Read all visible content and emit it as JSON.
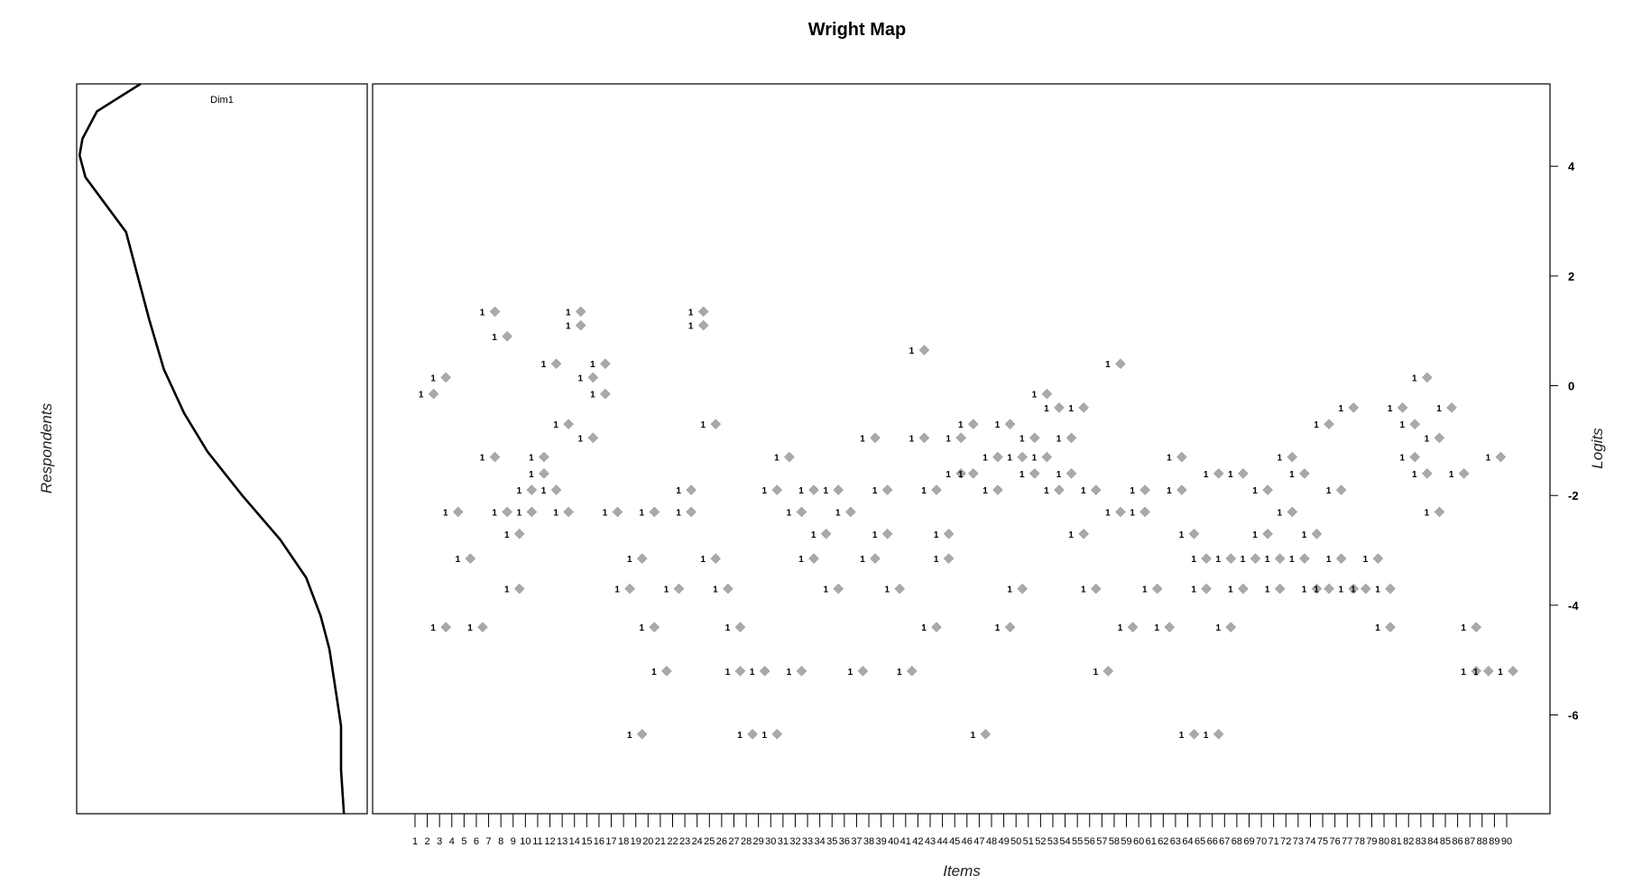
{
  "chart_data": {
    "type": "scatter",
    "title": "Wright Map",
    "xlabel": "Items",
    "ylabel": "Logits",
    "person_panel_label": "Respondents",
    "dimension_label": "Dim1",
    "ylim": [
      -7.8,
      5.5
    ],
    "y_ticks": [
      4,
      2,
      0,
      -2,
      -4,
      -6
    ],
    "item_count": 90,
    "threshold_marker_label": "1",
    "marker_color": "#a9a9a9",
    "person_density": [
      {
        "logit": 5.5,
        "density": 0.22
      },
      {
        "logit": 5.0,
        "density": 0.07
      },
      {
        "logit": 4.5,
        "density": 0.02
      },
      {
        "logit": 4.2,
        "density": 0.01
      },
      {
        "logit": 3.8,
        "density": 0.03
      },
      {
        "logit": 3.3,
        "density": 0.1
      },
      {
        "logit": 2.8,
        "density": 0.17
      },
      {
        "logit": 2.0,
        "density": 0.21
      },
      {
        "logit": 1.2,
        "density": 0.25
      },
      {
        "logit": 0.3,
        "density": 0.3
      },
      {
        "logit": -0.5,
        "density": 0.37
      },
      {
        "logit": -1.2,
        "density": 0.45
      },
      {
        "logit": -2.0,
        "density": 0.57
      },
      {
        "logit": -2.8,
        "density": 0.7
      },
      {
        "logit": -3.5,
        "density": 0.79
      },
      {
        "logit": -4.2,
        "density": 0.84
      },
      {
        "logit": -4.8,
        "density": 0.87
      },
      {
        "logit": -5.5,
        "density": 0.89
      },
      {
        "logit": -6.2,
        "density": 0.91
      },
      {
        "logit": -7.0,
        "density": 0.91
      },
      {
        "logit": -7.8,
        "density": 0.92
      }
    ],
    "item_thresholds": [
      {
        "item": 2,
        "logit": -0.15
      },
      {
        "item": 3,
        "logit": 0.15
      },
      {
        "item": 3,
        "logit": -4.4
      },
      {
        "item": 4,
        "logit": -2.3
      },
      {
        "item": 5,
        "logit": -3.15
      },
      {
        "item": 6,
        "logit": -4.4
      },
      {
        "item": 7,
        "logit": -1.3
      },
      {
        "item": 7,
        "logit": 1.35
      },
      {
        "item": 8,
        "logit": 0.9
      },
      {
        "item": 8,
        "logit": -2.3
      },
      {
        "item": 9,
        "logit": -2.7
      },
      {
        "item": 9,
        "logit": -3.7
      },
      {
        "item": 10,
        "logit": -1.9
      },
      {
        "item": 10,
        "logit": -2.3
      },
      {
        "item": 11,
        "logit": -1.6
      },
      {
        "item": 11,
        "logit": -1.3
      },
      {
        "item": 12,
        "logit": 0.4
      },
      {
        "item": 12,
        "logit": -1.9
      },
      {
        "item": 13,
        "logit": -0.7
      },
      {
        "item": 13,
        "logit": -2.3
      },
      {
        "item": 14,
        "logit": 1.35
      },
      {
        "item": 14,
        "logit": 1.1
      },
      {
        "item": 15,
        "logit": 0.15
      },
      {
        "item": 15,
        "logit": -0.95
      },
      {
        "item": 16,
        "logit": 0.4
      },
      {
        "item": 16,
        "logit": -0.15
      },
      {
        "item": 17,
        "logit": -2.3
      },
      {
        "item": 18,
        "logit": -3.7
      },
      {
        "item": 19,
        "logit": -3.15
      },
      {
        "item": 19,
        "logit": -6.35
      },
      {
        "item": 20,
        "logit": -4.4
      },
      {
        "item": 20,
        "logit": -2.3
      },
      {
        "item": 21,
        "logit": -5.2
      },
      {
        "item": 22,
        "logit": -3.7
      },
      {
        "item": 23,
        "logit": -1.9
      },
      {
        "item": 23,
        "logit": -2.3
      },
      {
        "item": 24,
        "logit": 1.35
      },
      {
        "item": 24,
        "logit": 1.1
      },
      {
        "item": 25,
        "logit": -0.7
      },
      {
        "item": 25,
        "logit": -3.15
      },
      {
        "item": 26,
        "logit": -3.7
      },
      {
        "item": 27,
        "logit": -4.4
      },
      {
        "item": 27,
        "logit": -5.2
      },
      {
        "item": 28,
        "logit": -6.35
      },
      {
        "item": 29,
        "logit": -5.2
      },
      {
        "item": 30,
        "logit": -1.9
      },
      {
        "item": 30,
        "logit": -6.35
      },
      {
        "item": 31,
        "logit": -1.3
      },
      {
        "item": 32,
        "logit": -2.3
      },
      {
        "item": 32,
        "logit": -5.2
      },
      {
        "item": 33,
        "logit": -1.9
      },
      {
        "item": 33,
        "logit": -3.15
      },
      {
        "item": 34,
        "logit": -2.7
      },
      {
        "item": 35,
        "logit": -3.7
      },
      {
        "item": 35,
        "logit": -1.9
      },
      {
        "item": 36,
        "logit": -2.3
      },
      {
        "item": 37,
        "logit": -5.2
      },
      {
        "item": 38,
        "logit": -0.95
      },
      {
        "item": 38,
        "logit": -3.15
      },
      {
        "item": 39,
        "logit": -1.9
      },
      {
        "item": 39,
        "logit": -2.7
      },
      {
        "item": 40,
        "logit": -3.7
      },
      {
        "item": 41,
        "logit": -5.2
      },
      {
        "item": 42,
        "logit": 0.65
      },
      {
        "item": 42,
        "logit": -0.95
      },
      {
        "item": 43,
        "logit": -1.9
      },
      {
        "item": 43,
        "logit": -4.4
      },
      {
        "item": 44,
        "logit": -2.7
      },
      {
        "item": 44,
        "logit": -3.15
      },
      {
        "item": 45,
        "logit": -1.6
      },
      {
        "item": 45,
        "logit": -0.95
      },
      {
        "item": 46,
        "logit": -0.7
      },
      {
        "item": 46,
        "logit": -1.6
      },
      {
        "item": 47,
        "logit": -6.35
      },
      {
        "item": 48,
        "logit": -1.3
      },
      {
        "item": 48,
        "logit": -1.9
      },
      {
        "item": 49,
        "logit": -0.7
      },
      {
        "item": 49,
        "logit": -4.4
      },
      {
        "item": 50,
        "logit": -1.3
      },
      {
        "item": 50,
        "logit": -3.7
      },
      {
        "item": 51,
        "logit": -0.95
      },
      {
        "item": 51,
        "logit": -1.6
      },
      {
        "item": 52,
        "logit": -0.15
      },
      {
        "item": 52,
        "logit": -1.3
      },
      {
        "item": 53,
        "logit": -0.4
      },
      {
        "item": 53,
        "logit": -1.9
      },
      {
        "item": 54,
        "logit": -0.95
      },
      {
        "item": 54,
        "logit": -1.6
      },
      {
        "item": 55,
        "logit": -0.4
      },
      {
        "item": 55,
        "logit": -2.7
      },
      {
        "item": 56,
        "logit": -3.7
      },
      {
        "item": 56,
        "logit": -1.9
      },
      {
        "item": 57,
        "logit": -5.2
      },
      {
        "item": 58,
        "logit": 0.4
      },
      {
        "item": 58,
        "logit": -2.3
      },
      {
        "item": 59,
        "logit": -4.4
      },
      {
        "item": 60,
        "logit": -1.9
      },
      {
        "item": 60,
        "logit": -2.3
      },
      {
        "item": 61,
        "logit": -3.7
      },
      {
        "item": 62,
        "logit": -4.4
      },
      {
        "item": 63,
        "logit": -1.3
      },
      {
        "item": 63,
        "logit": -1.9
      },
      {
        "item": 64,
        "logit": -2.7
      },
      {
        "item": 64,
        "logit": -6.35
      },
      {
        "item": 65,
        "logit": -3.15
      },
      {
        "item": 65,
        "logit": -3.7
      },
      {
        "item": 66,
        "logit": -1.6
      },
      {
        "item": 66,
        "logit": -6.35
      },
      {
        "item": 67,
        "logit": -3.15
      },
      {
        "item": 67,
        "logit": -4.4
      },
      {
        "item": 68,
        "logit": -1.6
      },
      {
        "item": 68,
        "logit": -3.7
      },
      {
        "item": 69,
        "logit": -3.15
      },
      {
        "item": 70,
        "logit": -1.9
      },
      {
        "item": 70,
        "logit": -2.7
      },
      {
        "item": 71,
        "logit": -3.15
      },
      {
        "item": 71,
        "logit": -3.7
      },
      {
        "item": 72,
        "logit": -1.3
      },
      {
        "item": 72,
        "logit": -2.3
      },
      {
        "item": 73,
        "logit": -1.6
      },
      {
        "item": 73,
        "logit": -3.15
      },
      {
        "item": 74,
        "logit": -2.7
      },
      {
        "item": 74,
        "logit": -3.7
      },
      {
        "item": 75,
        "logit": -0.7
      },
      {
        "item": 75,
        "logit": -3.7
      },
      {
        "item": 76,
        "logit": -1.9
      },
      {
        "item": 76,
        "logit": -3.15
      },
      {
        "item": 77,
        "logit": -0.4
      },
      {
        "item": 77,
        "logit": -3.7
      },
      {
        "item": 78,
        "logit": -3.7
      },
      {
        "item": 79,
        "logit": -3.15
      },
      {
        "item": 80,
        "logit": -3.7
      },
      {
        "item": 80,
        "logit": -4.4
      },
      {
        "item": 81,
        "logit": -0.4
      },
      {
        "item": 82,
        "logit": -1.3
      },
      {
        "item": 82,
        "logit": -0.7
      },
      {
        "item": 83,
        "logit": 0.15
      },
      {
        "item": 83,
        "logit": -1.6
      },
      {
        "item": 84,
        "logit": -0.95
      },
      {
        "item": 84,
        "logit": -2.3
      },
      {
        "item": 85,
        "logit": -0.4
      },
      {
        "item": 86,
        "logit": -1.6
      },
      {
        "item": 87,
        "logit": -4.4
      },
      {
        "item": 87,
        "logit": -5.2
      },
      {
        "item": 88,
        "logit": -5.2
      },
      {
        "item": 89,
        "logit": -1.3
      },
      {
        "item": 90,
        "logit": -5.2
      }
    ]
  }
}
